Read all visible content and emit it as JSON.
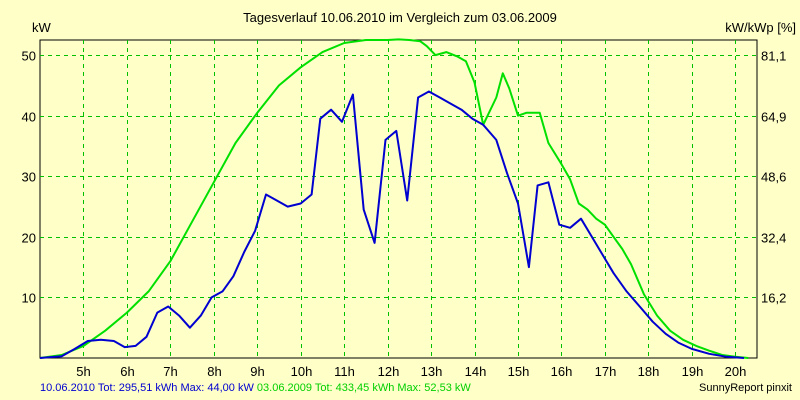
{
  "chart_data": {
    "type": "line",
    "title": "Tagesverlauf 10.06.2010 im Vergleich zum 03.06.2009",
    "ylabel_left": "kW",
    "ylabel_right": "kW/kWp [%]",
    "x_range": [
      4.0,
      20.5
    ],
    "y_range": [
      0,
      52.5
    ],
    "x_ticks": [
      {
        "v": 5,
        "label": "5h"
      },
      {
        "v": 6,
        "label": "6h"
      },
      {
        "v": 7,
        "label": "7h"
      },
      {
        "v": 8,
        "label": "8h"
      },
      {
        "v": 9,
        "label": "9h"
      },
      {
        "v": 10,
        "label": "10h"
      },
      {
        "v": 11,
        "label": "11h"
      },
      {
        "v": 12,
        "label": "12h"
      },
      {
        "v": 13,
        "label": "13h"
      },
      {
        "v": 14,
        "label": "14h"
      },
      {
        "v": 15,
        "label": "15h"
      },
      {
        "v": 16,
        "label": "16h"
      },
      {
        "v": 17,
        "label": "17h"
      },
      {
        "v": 18,
        "label": "18h"
      },
      {
        "v": 19,
        "label": "19h"
      },
      {
        "v": 20,
        "label": "20h"
      }
    ],
    "y_ticks_left": [
      {
        "v": 10,
        "label": "10"
      },
      {
        "v": 20,
        "label": "20"
      },
      {
        "v": 30,
        "label": "30"
      },
      {
        "v": 40,
        "label": "40"
      },
      {
        "v": 50,
        "label": "50"
      }
    ],
    "y_ticks_right": [
      {
        "v": 10,
        "label": "16,2"
      },
      {
        "v": 20,
        "label": "32,4"
      },
      {
        "v": 30,
        "label": "48,6"
      },
      {
        "v": 40,
        "label": "64,9"
      },
      {
        "v": 50,
        "label": "81,1"
      }
    ],
    "grid": true,
    "series": [
      {
        "name": "03.06.2009",
        "color": "#00E000",
        "x": [
          4.0,
          4.5,
          5.0,
          5.5,
          6.0,
          6.5,
          7.0,
          7.5,
          8.0,
          8.5,
          9.0,
          9.5,
          10.0,
          10.5,
          11.0,
          11.5,
          12.0,
          12.25,
          12.5,
          12.75,
          12.9,
          13.1,
          13.35,
          13.6,
          13.8,
          14.0,
          14.2,
          14.5,
          14.65,
          14.8,
          15.0,
          15.2,
          15.5,
          15.7,
          16.0,
          16.2,
          16.4,
          16.6,
          16.8,
          17.0,
          17.2,
          17.4,
          17.6,
          17.9,
          18.2,
          18.5,
          18.8,
          19.1,
          19.4,
          19.7,
          20.0,
          20.3
        ],
        "y": [
          0,
          0.5,
          2,
          4.5,
          7.5,
          11,
          16,
          22.5,
          29,
          35.5,
          40.5,
          45,
          48,
          50.5,
          52.0,
          52.5,
          52.5,
          52.6,
          52.5,
          52.3,
          51.5,
          50.0,
          50.5,
          49.8,
          49.0,
          45.5,
          38.5,
          43.0,
          47.0,
          44.5,
          40.0,
          40.5,
          40.5,
          35.5,
          32.0,
          29.5,
          25.5,
          24.5,
          23.0,
          22.0,
          20.0,
          18.0,
          15.5,
          10.5,
          7.0,
          4.5,
          3.0,
          2.0,
          1.2,
          0.5,
          0.2,
          0
        ]
      },
      {
        "name": "10.06.2010",
        "color": "#0000D0",
        "x": [
          4.0,
          4.5,
          4.8,
          5.1,
          5.4,
          5.7,
          5.95,
          6.2,
          6.45,
          6.7,
          6.95,
          7.2,
          7.45,
          7.7,
          7.95,
          8.2,
          8.45,
          8.7,
          8.95,
          9.2,
          9.45,
          9.7,
          10.0,
          10.25,
          10.45,
          10.7,
          10.95,
          11.2,
          11.45,
          11.7,
          11.95,
          12.2,
          12.45,
          12.7,
          12.95,
          13.2,
          13.45,
          13.7,
          13.95,
          14.2,
          14.5,
          14.75,
          15.0,
          15.25,
          15.45,
          15.7,
          15.95,
          16.2,
          16.45,
          16.7,
          16.95,
          17.2,
          17.5,
          17.8,
          18.1,
          18.4,
          18.7,
          19.0,
          19.4,
          19.8,
          20.2
        ],
        "y": [
          0,
          0.3,
          1.5,
          2.8,
          3.0,
          2.8,
          1.8,
          2.0,
          3.5,
          7.5,
          8.5,
          7.0,
          5.0,
          7.0,
          10.0,
          11.0,
          13.5,
          17.5,
          21.0,
          27.0,
          26.0,
          25.0,
          25.5,
          27.0,
          39.5,
          41.0,
          39.0,
          43.5,
          24.5,
          19.0,
          36.0,
          37.5,
          26.0,
          43.0,
          44.0,
          43.0,
          42.0,
          41.0,
          39.5,
          38.5,
          36.0,
          30.5,
          25.5,
          15.0,
          28.5,
          29.0,
          22.0,
          21.5,
          23.0,
          20.0,
          17.0,
          14.0,
          11.0,
          8.5,
          6.0,
          4.0,
          2.5,
          1.5,
          0.7,
          0.2,
          0
        ]
      }
    ]
  },
  "footer": {
    "s1_date": "10.06.2010",
    "s1_tot": "Tot: 295,51 kWh",
    "s1_max": "Max: 44,00 kW",
    "s2_date": "03.06.2009",
    "s2_tot": "Tot: 433,45 kWh",
    "s2_max": "Max: 52,53 kW",
    "credit": "SunnyReport pinxit"
  }
}
